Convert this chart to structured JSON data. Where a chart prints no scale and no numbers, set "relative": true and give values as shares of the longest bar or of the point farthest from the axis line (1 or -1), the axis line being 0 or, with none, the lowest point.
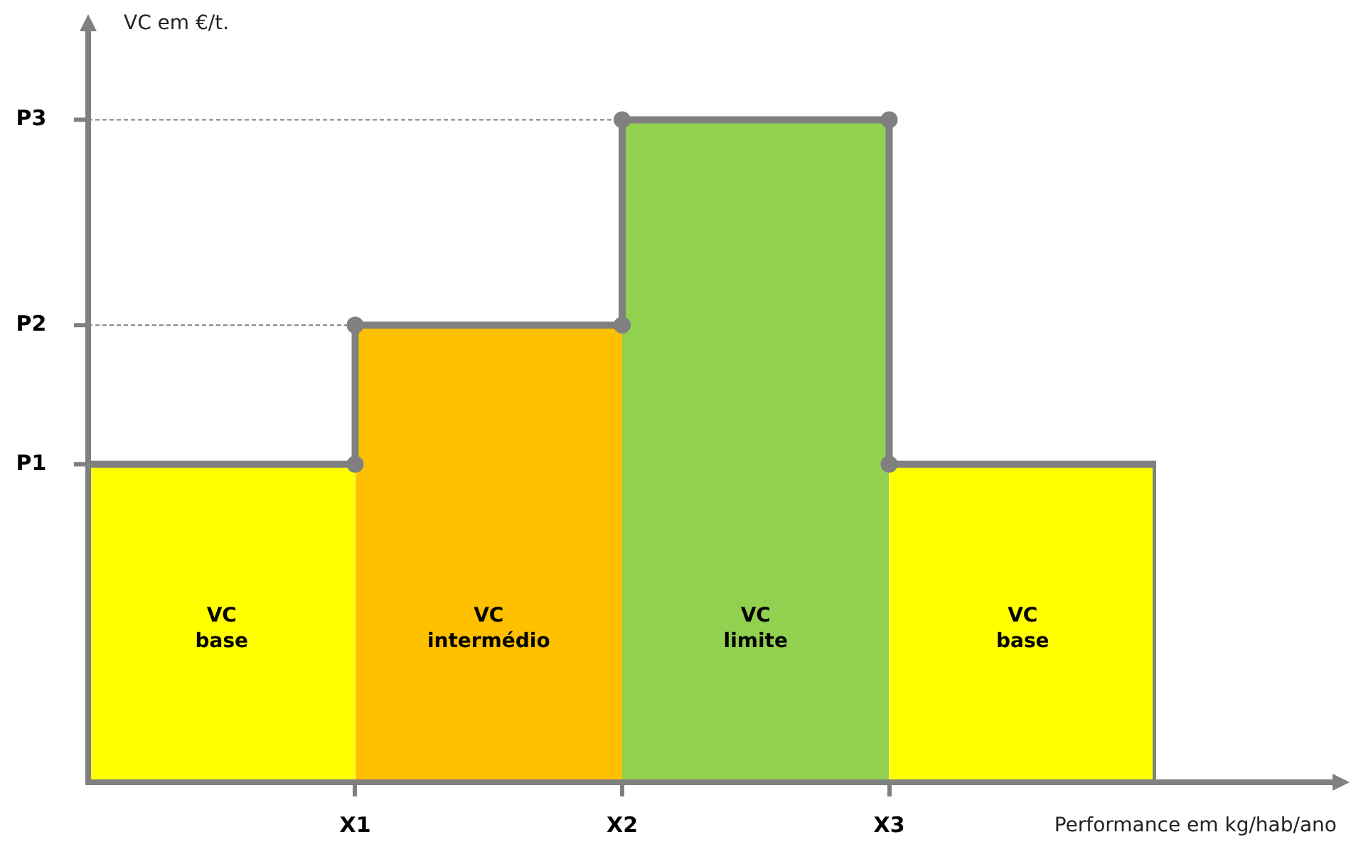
{
  "chart_data": {
    "type": "area",
    "xlabel": "Performance em kg/hab/ano",
    "ylabel": "VC em €/t.",
    "relative": true,
    "categories": [
      null,
      "X1",
      "X2",
      "X3",
      null
    ],
    "series": [
      {
        "name": "VC base",
        "color": "#ffff00",
        "values": [
          0.48,
          0.48,
          null,
          0.48,
          0.48
        ]
      },
      {
        "name": "VC intermédio",
        "color": "#ffc000",
        "values": [
          null,
          0.69,
          0.69,
          null,
          null
        ]
      },
      {
        "name": "VC limite",
        "color": "#92d050",
        "values": [
          null,
          null,
          1,
          1,
          null
        ]
      },
      {
        "type": "step",
        "color": "#808080",
        "values": [
          0.48,
          0.69,
          1,
          0.48,
          0
        ]
      },
      {
        "type": "scatter",
        "marker": "circle",
        "color": "#808080",
        "x": [
          "X1",
          "X1",
          "X2",
          "X2",
          "X3",
          "X3"
        ],
        "values": [
          0.48,
          0.69,
          0.69,
          1,
          1,
          0.48
        ]
      }
    ],
    "ref_lines": [
      {
        "axis": "y",
        "value": 0.48,
        "label": "P1",
        "color": "#808080"
      },
      {
        "axis": "y",
        "value": 0.69,
        "label": "P2",
        "color": "#808080",
        "line_style": "dashed"
      },
      {
        "axis": "y",
        "value": 1,
        "label": "P3",
        "color": "#808080",
        "line_style": "dashed"
      }
    ]
  }
}
